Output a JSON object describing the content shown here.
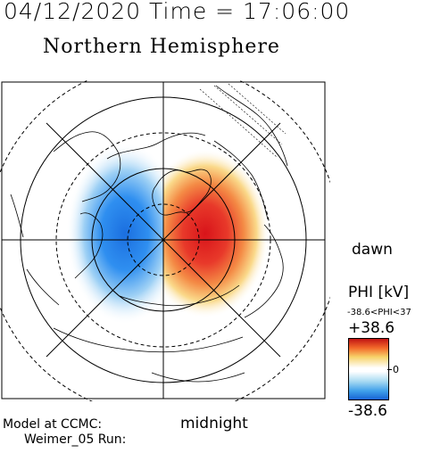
{
  "header": {
    "timestamp": "04/12/2020 Time = 17:06:00",
    "hemisphere": "Northern Hemisphere"
  },
  "map": {
    "dawn_label": "dawn",
    "midnight_label": "midnight"
  },
  "colorbar": {
    "title": "PHI [kV]",
    "range_text": "-38.6<PHI<37",
    "max_label": "+38.6",
    "zero_label": "0",
    "min_label": "-38.6",
    "colors": [
      "#c21414",
      "#f7d36a",
      "#ffffff",
      "#3fa0ea",
      "#1763d4"
    ]
  },
  "footer": {
    "model_line": "Model at CCMC:",
    "run_line": "Weimer_05 Run:"
  }
}
